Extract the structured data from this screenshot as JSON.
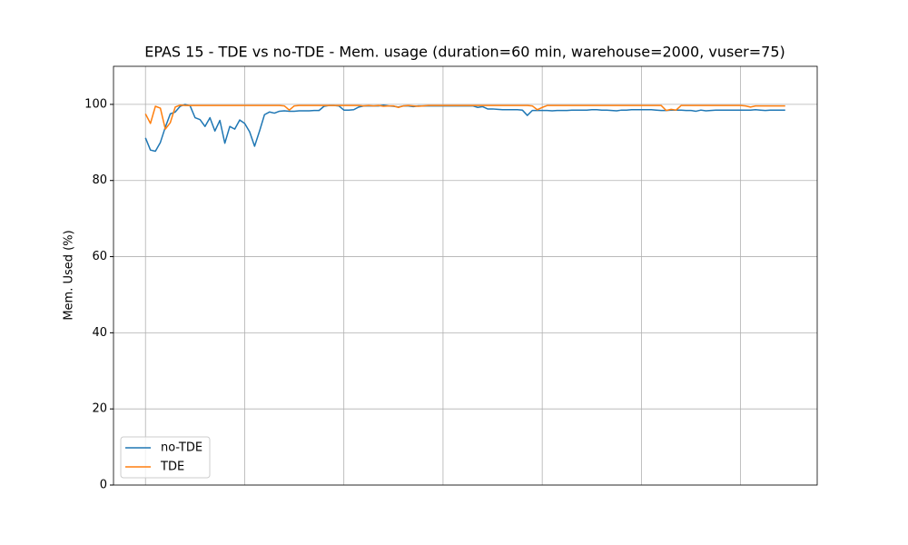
{
  "chart_data": {
    "type": "line",
    "title": "EPAS 15 - TDE vs no-TDE - Mem. usage (duration=60 min, warehouse=2000, vuser=75)",
    "ylabel": "Mem. Used (%)",
    "x": [
      0,
      1,
      2,
      3,
      4,
      5,
      6,
      7,
      8,
      9,
      10,
      11,
      12,
      13,
      14,
      15,
      16,
      17,
      18,
      19,
      20,
      21,
      22,
      23,
      24,
      25,
      26,
      27,
      28,
      29,
      30,
      31,
      32,
      33,
      34,
      35,
      36,
      37,
      38,
      39,
      40,
      41,
      42,
      43,
      44,
      45,
      46,
      47,
      48,
      49,
      50,
      51,
      52,
      53,
      54,
      55,
      56,
      57,
      58,
      59,
      60,
      61,
      62,
      63,
      64,
      65,
      66,
      67,
      68,
      69,
      70,
      71,
      72,
      73,
      74,
      75,
      76,
      77,
      78,
      79,
      80,
      81,
      82,
      83,
      84,
      85,
      86,
      87,
      88,
      89,
      90,
      91,
      92,
      93,
      94,
      95,
      96,
      97,
      98,
      99,
      100,
      101,
      102,
      103,
      104,
      105,
      106,
      107,
      108,
      109,
      110,
      111,
      112,
      113,
      114,
      115,
      116,
      117,
      118,
      119,
      120,
      121,
      122,
      123,
      124,
      125,
      126,
      127,
      128,
      129
    ],
    "series": [
      {
        "name": "no-TDE",
        "color": "#1f77b4",
        "values": [
          91.2,
          88,
          87.7,
          90,
          94,
          97.5,
          98,
          99.5,
          100,
          99.6,
          96.5,
          96,
          94.2,
          96.5,
          93,
          95.8,
          89.8,
          94.2,
          93.5,
          95.9,
          95,
          92.8,
          89,
          93,
          97.3,
          98,
          97.7,
          98.2,
          98.3,
          98.2,
          98.2,
          98.3,
          98.3,
          98.3,
          98.4,
          98.4,
          99.5,
          99.7,
          99.7,
          99.6,
          98.5,
          98.5,
          98.6,
          99.3,
          99.6,
          99.6,
          99.6,
          99.6,
          99.8,
          99.6,
          99.5,
          99.3,
          99.6,
          99.6,
          99.4,
          99.6,
          99.6,
          99.6,
          99.6,
          99.6,
          99.6,
          99.6,
          99.6,
          99.6,
          99.6,
          99.6,
          99.6,
          99.2,
          99.4,
          98.8,
          98.8,
          98.7,
          98.6,
          98.6,
          98.6,
          98.6,
          98.5,
          97.1,
          98.4,
          98.4,
          98.4,
          98.4,
          98.3,
          98.4,
          98.4,
          98.4,
          98.5,
          98.5,
          98.5,
          98.5,
          98.6,
          98.6,
          98.5,
          98.5,
          98.4,
          98.3,
          98.5,
          98.5,
          98.6,
          98.6,
          98.6,
          98.6,
          98.6,
          98.5,
          98.4,
          98.4,
          98.5,
          98.5,
          98.5,
          98.4,
          98.4,
          98.2,
          98.5,
          98.3,
          98.4,
          98.5,
          98.5,
          98.5,
          98.5,
          98.5,
          98.5,
          98.5,
          98.5,
          98.6,
          98.5,
          98.4,
          98.5,
          98.5,
          98.5,
          98.5
        ]
      },
      {
        "name": "TDE",
        "color": "#ff7f0e",
        "values": [
          97.5,
          95,
          99.5,
          99,
          93.5,
          95.2,
          99.3,
          99.8,
          99.7,
          99.7,
          99.7,
          99.7,
          99.7,
          99.7,
          99.7,
          99.7,
          99.7,
          99.7,
          99.7,
          99.7,
          99.7,
          99.7,
          99.7,
          99.7,
          99.7,
          99.7,
          99.7,
          99.7,
          99.6,
          98.5,
          99.6,
          99.7,
          99.7,
          99.7,
          99.7,
          99.7,
          99.7,
          99.7,
          99.7,
          99.7,
          99.7,
          99.7,
          99.7,
          99.7,
          99.6,
          99.7,
          99.6,
          99.7,
          99.5,
          99.6,
          99.6,
          99.2,
          99.6,
          99.7,
          99.6,
          99.5,
          99.6,
          99.7,
          99.7,
          99.7,
          99.7,
          99.7,
          99.7,
          99.7,
          99.7,
          99.7,
          99.7,
          99.7,
          99.7,
          99.7,
          99.7,
          99.7,
          99.7,
          99.7,
          99.7,
          99.7,
          99.7,
          99.7,
          99.6,
          98.6,
          99.2,
          99.7,
          99.7,
          99.7,
          99.7,
          99.7,
          99.7,
          99.7,
          99.7,
          99.7,
          99.7,
          99.7,
          99.7,
          99.7,
          99.7,
          99.7,
          99.7,
          99.7,
          99.7,
          99.7,
          99.7,
          99.7,
          99.7,
          99.7,
          99.7,
          98.4,
          98.7,
          98.5,
          99.7,
          99.7,
          99.7,
          99.7,
          99.7,
          99.7,
          99.7,
          99.7,
          99.7,
          99.7,
          99.7,
          99.7,
          99.7,
          99.6,
          99.3,
          99.6,
          99.6,
          99.6,
          99.6,
          99.6,
          99.6,
          99.6
        ]
      }
    ],
    "xlim": [
      -6.45,
      135.45
    ],
    "xticks": [
      0,
      20,
      40,
      60,
      80,
      100,
      120
    ],
    "ylim": [
      0,
      110
    ],
    "yticks": [
      0,
      20,
      40,
      60,
      80,
      100
    ],
    "grid": true,
    "legend": "lower left"
  }
}
